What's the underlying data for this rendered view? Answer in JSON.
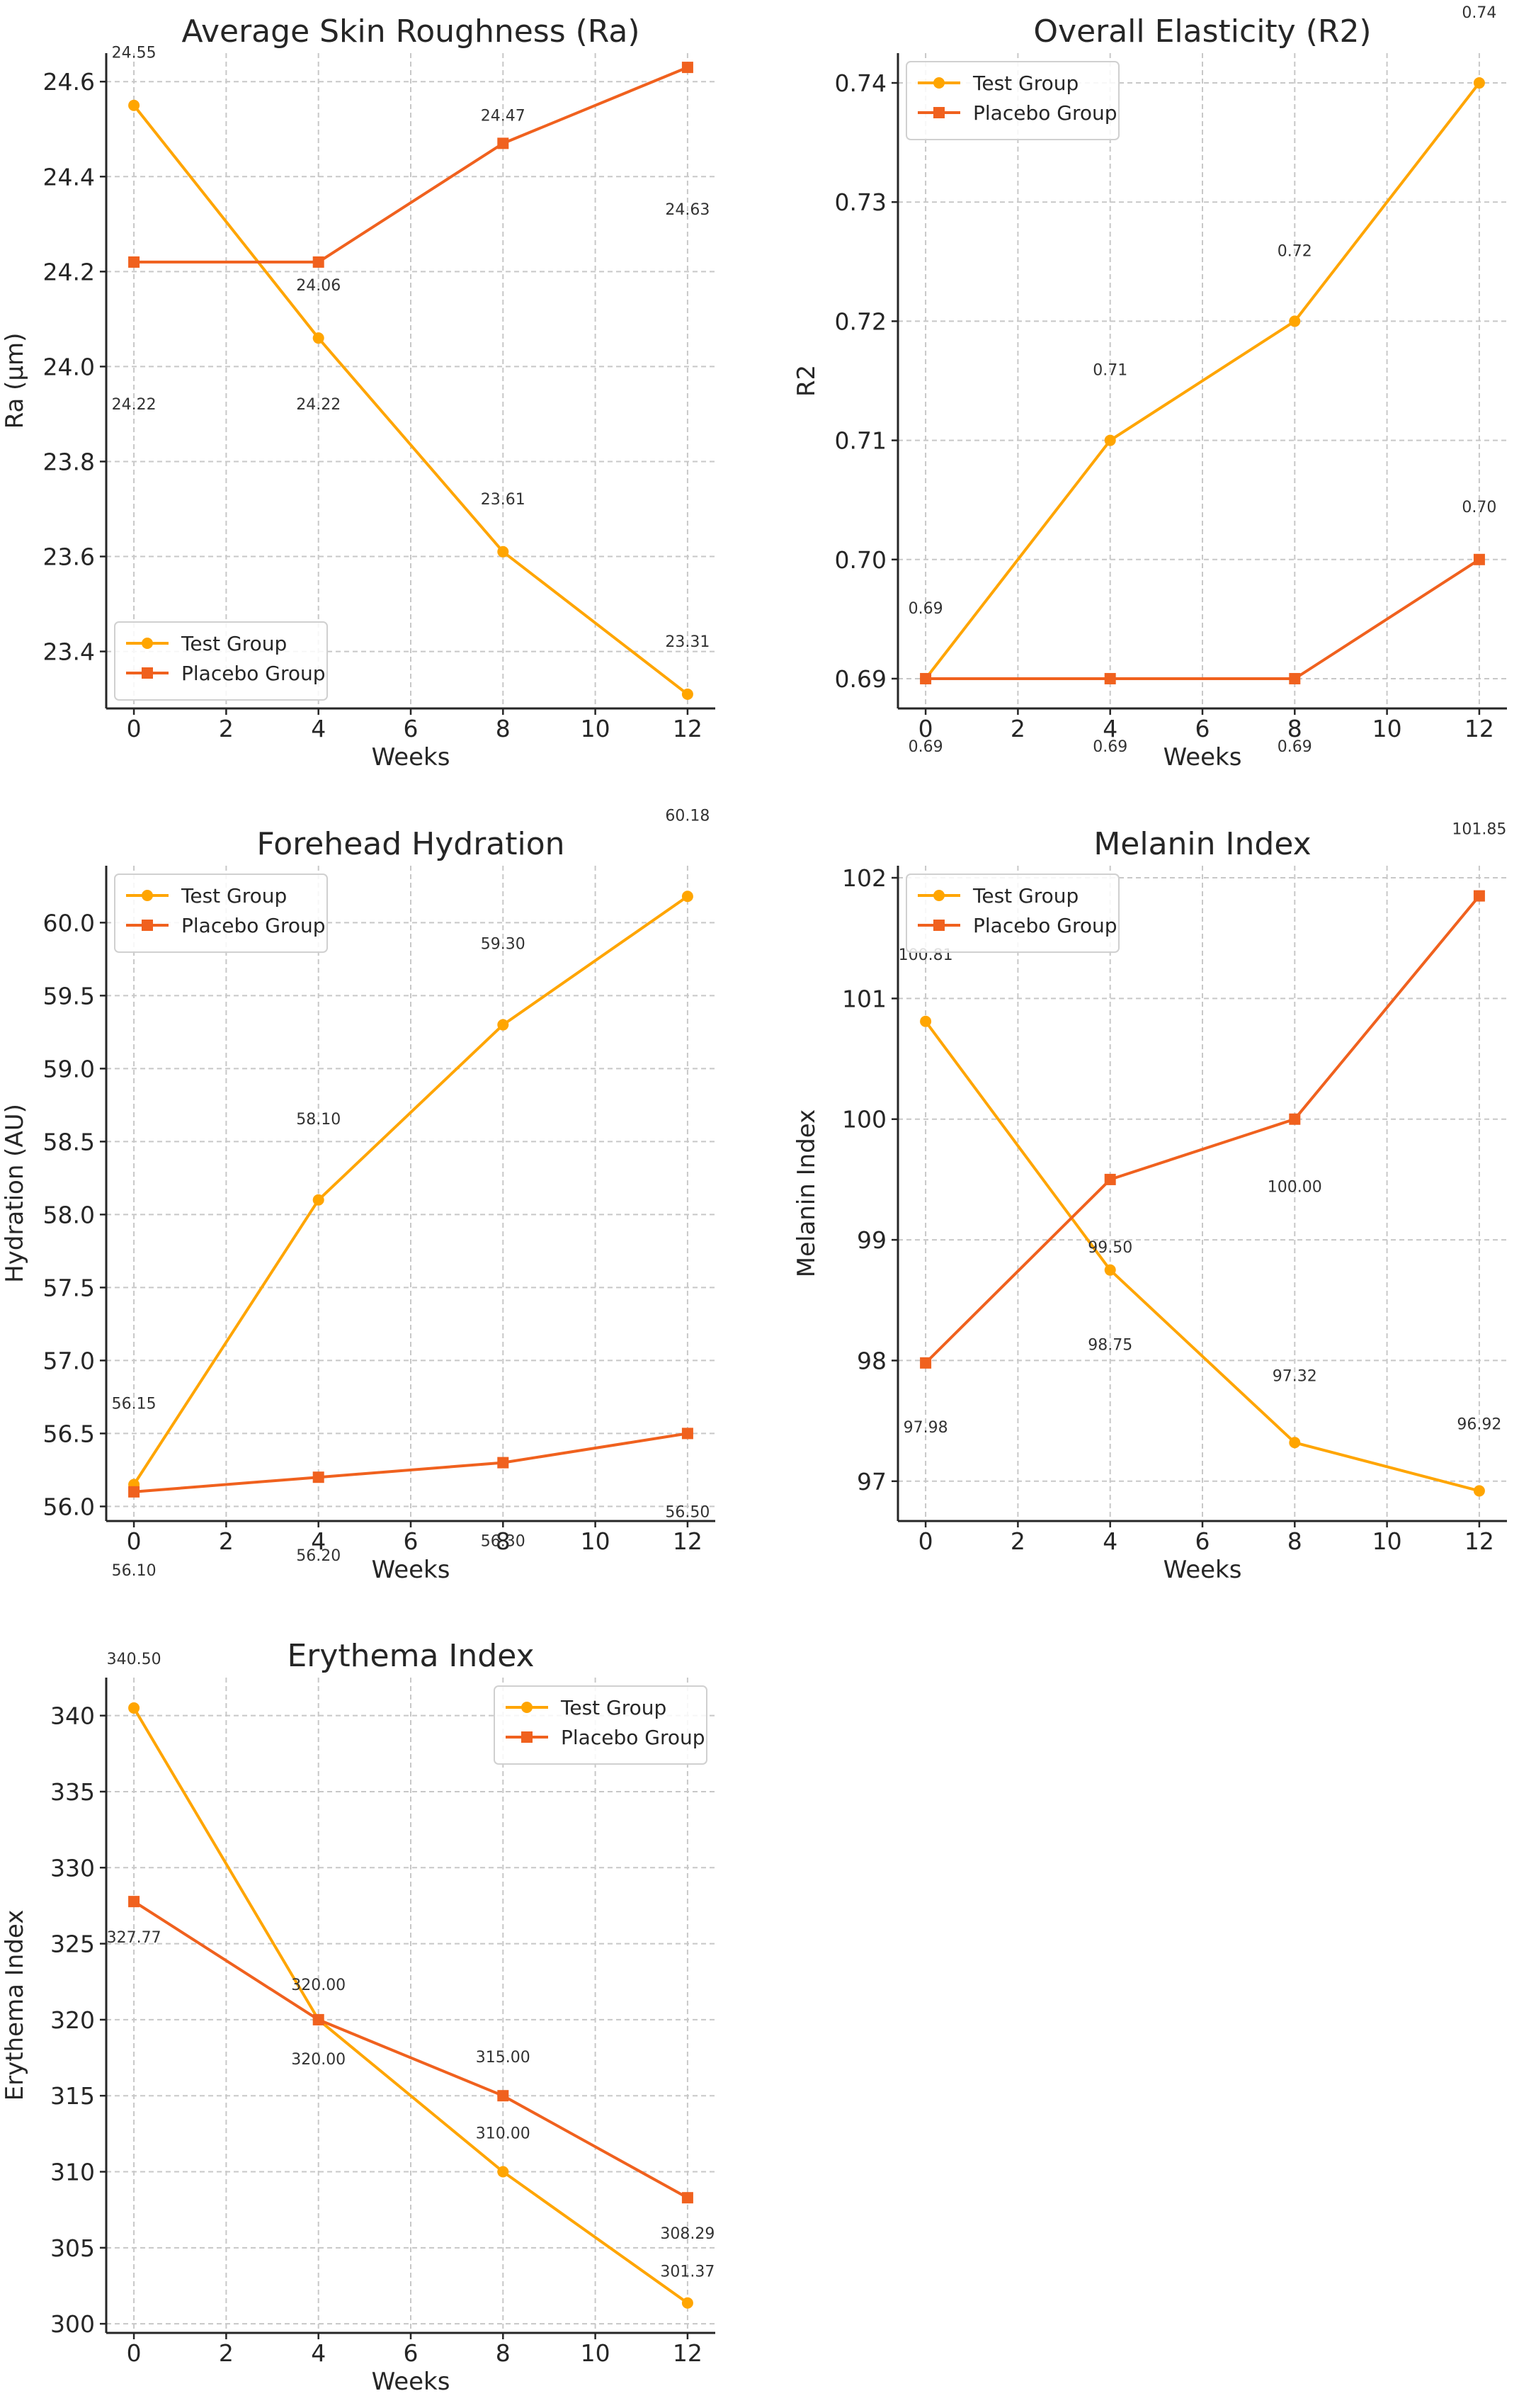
{
  "colors": {
    "test": "#FFA500",
    "placebo": "#F0611E"
  },
  "chart_data": [
    {
      "type": "line",
      "title": "Average Skin Roughness (Ra)",
      "xlabel": "Weeks",
      "ylabel": "Ra (µm)",
      "x": [
        0,
        4,
        8,
        12
      ],
      "xlim": [
        -0.6,
        12.6
      ],
      "ylim": [
        23.28,
        24.66
      ],
      "xticks": [
        0,
        2,
        4,
        6,
        8,
        10,
        12
      ],
      "yticks": [
        23.4,
        23.6,
        23.8,
        24.0,
        24.2,
        24.4,
        24.6
      ],
      "legend": "lower-left",
      "series": [
        {
          "name": "Test Group",
          "marker": "circle",
          "values": [
            24.55,
            24.06,
            23.61,
            23.31
          ],
          "labels": [
            "24.55",
            "24.06",
            "23.61",
            "23.31"
          ]
        },
        {
          "name": "Placebo Group",
          "marker": "square",
          "values": [
            24.22,
            24.22,
            24.47,
            24.63
          ],
          "labels": [
            "24.22",
            "24.22",
            "24.47",
            "24.63"
          ]
        }
      ]
    },
    {
      "type": "line",
      "title": "Overall Elasticity (R2)",
      "xlabel": "Weeks",
      "ylabel": "R2",
      "x": [
        0,
        4,
        8,
        12
      ],
      "xlim": [
        -0.6,
        12.6
      ],
      "ylim": [
        0.6875,
        0.7425
      ],
      "xticks": [
        0,
        2,
        4,
        6,
        8,
        10,
        12
      ],
      "yticks": [
        0.69,
        0.7,
        0.71,
        0.72,
        0.73,
        0.74
      ],
      "legend": "upper-left",
      "series": [
        {
          "name": "Test Group",
          "marker": "circle",
          "values": [
            0.69,
            0.71,
            0.72,
            0.74
          ],
          "labels": [
            "0.69",
            "0.71",
            "0.72",
            "0.74"
          ]
        },
        {
          "name": "Placebo Group",
          "marker": "square",
          "values": [
            0.69,
            0.69,
            0.69,
            0.7
          ],
          "labels": [
            "0.69",
            "0.69",
            "0.69",
            "0.70"
          ]
        }
      ]
    },
    {
      "type": "line",
      "title": "Forehead Hydration",
      "xlabel": "Weeks",
      "ylabel": "Hydration (AU)",
      "x": [
        0,
        4,
        8,
        12
      ],
      "xlim": [
        -0.6,
        12.6
      ],
      "ylim": [
        55.9,
        60.39
      ],
      "xticks": [
        0,
        2,
        4,
        6,
        8,
        10,
        12
      ],
      "yticks": [
        56.0,
        56.5,
        57.0,
        57.5,
        58.0,
        58.5,
        59.0,
        59.5,
        60.0
      ],
      "legend": "upper-left",
      "series": [
        {
          "name": "Test Group",
          "marker": "circle",
          "values": [
            56.15,
            58.1,
            59.3,
            60.18
          ],
          "labels": [
            "56.15",
            "58.10",
            "59.30",
            "60.18"
          ]
        },
        {
          "name": "Placebo Group",
          "marker": "square",
          "values": [
            56.1,
            56.2,
            56.3,
            56.5
          ],
          "labels": [
            "56.10",
            "56.20",
            "56.30",
            "56.50"
          ]
        }
      ]
    },
    {
      "type": "line",
      "title": "Melanin Index",
      "xlabel": "Weeks",
      "ylabel": "Melanin Index",
      "x": [
        0,
        4,
        8,
        12
      ],
      "xlim": [
        -0.6,
        12.6
      ],
      "ylim": [
        96.67,
        102.1
      ],
      "xticks": [
        0,
        2,
        4,
        6,
        8,
        10,
        12
      ],
      "yticks": [
        97,
        98,
        99,
        100,
        101,
        102
      ],
      "legend": "upper-left",
      "series": [
        {
          "name": "Test Group",
          "marker": "circle",
          "values": [
            100.81,
            98.75,
            97.32,
            96.92
          ],
          "labels": [
            "100.81",
            "98.75",
            "97.32",
            "96.92"
          ]
        },
        {
          "name": "Placebo Group",
          "marker": "square",
          "values": [
            97.98,
            99.5,
            100.0,
            101.85
          ],
          "labels": [
            "97.98",
            "99.50",
            "100.00",
            "101.85"
          ]
        }
      ]
    },
    {
      "type": "line",
      "title": "Erythema Index",
      "xlabel": "Weeks",
      "ylabel": "Erythema Index",
      "x": [
        0,
        4,
        8,
        12
      ],
      "xlim": [
        -0.6,
        12.6
      ],
      "ylim": [
        299.4,
        342.5
      ],
      "xticks": [
        0,
        2,
        4,
        6,
        8,
        10,
        12
      ],
      "yticks": [
        300,
        305,
        310,
        315,
        320,
        325,
        330,
        335,
        340
      ],
      "legend": "upper-right",
      "series": [
        {
          "name": "Test Group",
          "marker": "circle",
          "values": [
            340.5,
            320.0,
            310.0,
            301.37
          ],
          "labels": [
            "340.50",
            "320.00",
            "310.00",
            "301.37"
          ]
        },
        {
          "name": "Placebo Group",
          "marker": "square",
          "values": [
            327.77,
            320.0,
            315.0,
            308.29
          ],
          "labels": [
            "327.77",
            "320.00",
            "315.00",
            "308.29"
          ]
        }
      ]
    }
  ]
}
